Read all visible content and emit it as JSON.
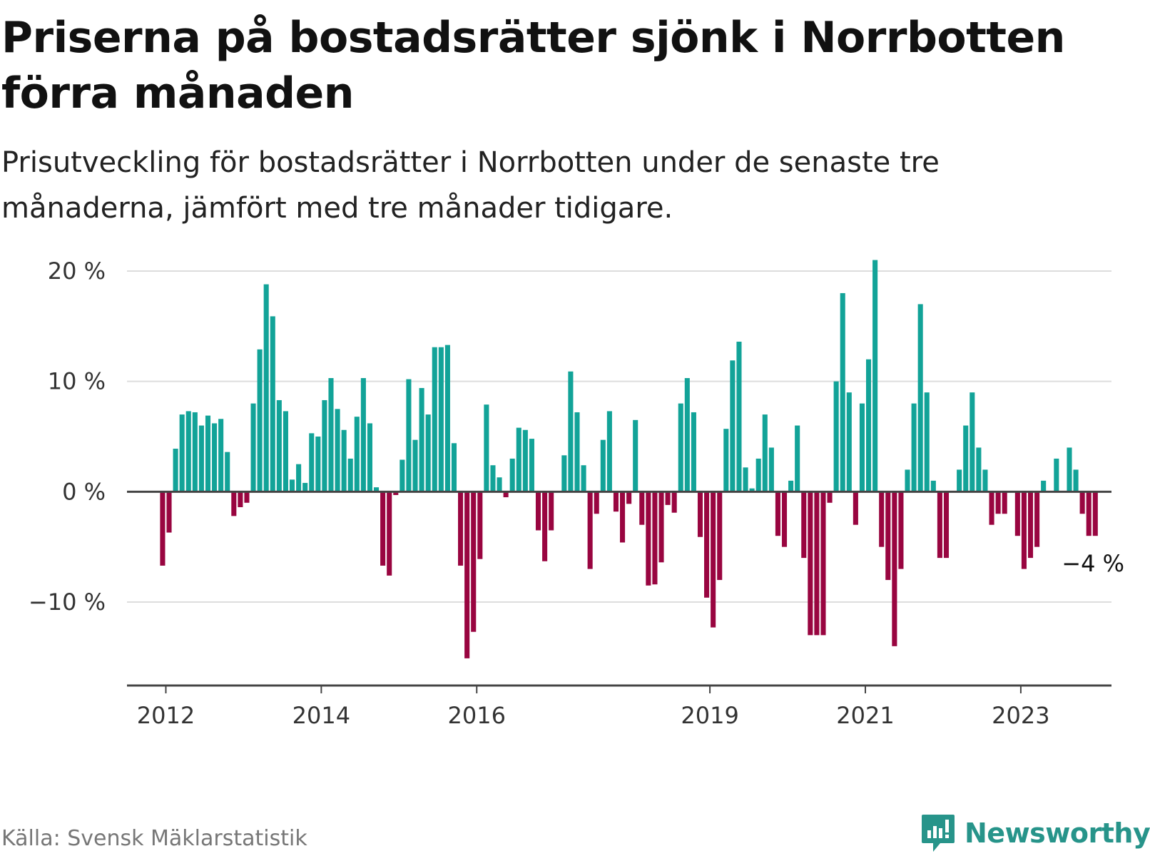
{
  "header": {
    "title": "Priserna på bostadsrätter sjönk i Norrbotten förra månaden",
    "subtitle": "Prisutveckling för bostadsrätter i Norrbotten under de senaste tre månaderna, jämfört med tre månader tidigare."
  },
  "footer": {
    "source": "Källa: Svensk Mäklarstatistik",
    "brand": "Newsworthy",
    "brand_icon": "newsworthy-logo-icon"
  },
  "colors": {
    "positive": "#12a398",
    "negative": "#990540",
    "gridline": "#dddddd",
    "zeroline": "#444444"
  },
  "chart_data": {
    "type": "bar",
    "title": "Priserna på bostadsrätter sjönk i Norrbotten förra månaden",
    "ylabel": "",
    "xlabel": "",
    "unit": "%",
    "ylim": [
      -17.5,
      20
    ],
    "yticks": [
      {
        "value": 20,
        "label": "20 %"
      },
      {
        "value": 10,
        "label": "10 %"
      },
      {
        "value": 0,
        "label": "0 %"
      },
      {
        "value": -10,
        "label": "−10 %"
      }
    ],
    "x_start": "2011-07",
    "x_end": "2024-02",
    "xticks": [
      {
        "month": "2012-01",
        "label": "2012"
      },
      {
        "month": "2014-01",
        "label": "2014"
      },
      {
        "month": "2016-01",
        "label": "2016"
      },
      {
        "month": "2019-01",
        "label": "2019"
      },
      {
        "month": "2021-01",
        "label": "2021"
      },
      {
        "month": "2023-01",
        "label": "2023"
      }
    ],
    "series": [
      {
        "name": "Prisutveckling",
        "values": [
          {
            "month": "2011-12",
            "value": -6.7
          },
          {
            "month": "2012-01",
            "value": -3.7
          },
          {
            "month": "2012-02",
            "value": 3.9
          },
          {
            "month": "2012-03",
            "value": 7.0
          },
          {
            "month": "2012-04",
            "value": 7.3
          },
          {
            "month": "2012-05",
            "value": 7.2
          },
          {
            "month": "2012-06",
            "value": 6.0
          },
          {
            "month": "2012-07",
            "value": 6.9
          },
          {
            "month": "2012-08",
            "value": 6.2
          },
          {
            "month": "2012-09",
            "value": 6.6
          },
          {
            "month": "2012-10",
            "value": 3.6
          },
          {
            "month": "2012-11",
            "value": -2.2
          },
          {
            "month": "2012-12",
            "value": -1.4
          },
          {
            "month": "2013-01",
            "value": -1.0
          },
          {
            "month": "2013-02",
            "value": 8.0
          },
          {
            "month": "2013-03",
            "value": 12.9
          },
          {
            "month": "2013-04",
            "value": 18.8
          },
          {
            "month": "2013-05",
            "value": 15.9
          },
          {
            "month": "2013-06",
            "value": 8.3
          },
          {
            "month": "2013-07",
            "value": 7.3
          },
          {
            "month": "2013-08",
            "value": 1.1
          },
          {
            "month": "2013-09",
            "value": 2.5
          },
          {
            "month": "2013-10",
            "value": 0.8
          },
          {
            "month": "2013-11",
            "value": 5.3
          },
          {
            "month": "2013-12",
            "value": 5.0
          },
          {
            "month": "2014-01",
            "value": 8.3
          },
          {
            "month": "2014-02",
            "value": 10.3
          },
          {
            "month": "2014-03",
            "value": 7.5
          },
          {
            "month": "2014-04",
            "value": 5.6
          },
          {
            "month": "2014-05",
            "value": 3.0
          },
          {
            "month": "2014-06",
            "value": 6.8
          },
          {
            "month": "2014-07",
            "value": 10.3
          },
          {
            "month": "2014-08",
            "value": 6.2
          },
          {
            "month": "2014-09",
            "value": 0.4
          },
          {
            "month": "2014-10",
            "value": -6.7
          },
          {
            "month": "2014-11",
            "value": -7.6
          },
          {
            "month": "2014-12",
            "value": -0.3
          },
          {
            "month": "2015-01",
            "value": 2.9
          },
          {
            "month": "2015-02",
            "value": 10.2
          },
          {
            "month": "2015-03",
            "value": 4.7
          },
          {
            "month": "2015-04",
            "value": 9.4
          },
          {
            "month": "2015-05",
            "value": 7.0
          },
          {
            "month": "2015-06",
            "value": 13.1
          },
          {
            "month": "2015-07",
            "value": 13.1
          },
          {
            "month": "2015-08",
            "value": 13.3
          },
          {
            "month": "2015-09",
            "value": 4.4
          },
          {
            "month": "2015-10",
            "value": -6.7
          },
          {
            "month": "2015-11",
            "value": -15.1
          },
          {
            "month": "2015-12",
            "value": -12.7
          },
          {
            "month": "2016-01",
            "value": -6.1
          },
          {
            "month": "2016-02",
            "value": 7.9
          },
          {
            "month": "2016-03",
            "value": 2.4
          },
          {
            "month": "2016-04",
            "value": 1.3
          },
          {
            "month": "2016-05",
            "value": -0.5
          },
          {
            "month": "2016-06",
            "value": 3.0
          },
          {
            "month": "2016-07",
            "value": 5.8
          },
          {
            "month": "2016-08",
            "value": 5.6
          },
          {
            "month": "2016-09",
            "value": 4.8
          },
          {
            "month": "2016-10",
            "value": -3.5
          },
          {
            "month": "2016-11",
            "value": -6.3
          },
          {
            "month": "2016-12",
            "value": -3.5
          },
          {
            "month": "2017-02",
            "value": 3.3
          },
          {
            "month": "2017-03",
            "value": 10.9
          },
          {
            "month": "2017-04",
            "value": 7.2
          },
          {
            "month": "2017-05",
            "value": 2.4
          },
          {
            "month": "2017-06",
            "value": -7.0
          },
          {
            "month": "2017-07",
            "value": -2.0
          },
          {
            "month": "2017-08",
            "value": 4.7
          },
          {
            "month": "2017-09",
            "value": 7.3
          },
          {
            "month": "2017-10",
            "value": -1.8
          },
          {
            "month": "2017-11",
            "value": -4.6
          },
          {
            "month": "2017-12",
            "value": -1.1
          },
          {
            "month": "2018-01",
            "value": 6.5
          },
          {
            "month": "2018-02",
            "value": -3.0
          },
          {
            "month": "2018-03",
            "value": -8.5
          },
          {
            "month": "2018-04",
            "value": -8.4
          },
          {
            "month": "2018-05",
            "value": -6.4
          },
          {
            "month": "2018-06",
            "value": -1.2
          },
          {
            "month": "2018-07",
            "value": -1.9
          },
          {
            "month": "2018-08",
            "value": 8.0
          },
          {
            "month": "2018-09",
            "value": 10.3
          },
          {
            "month": "2018-10",
            "value": 7.2
          },
          {
            "month": "2018-11",
            "value": -4.1
          },
          {
            "month": "2018-12",
            "value": -9.6
          },
          {
            "month": "2019-01",
            "value": -12.3
          },
          {
            "month": "2019-02",
            "value": -8.0
          },
          {
            "month": "2019-03",
            "value": 5.7
          },
          {
            "month": "2019-04",
            "value": 11.9
          },
          {
            "month": "2019-05",
            "value": 13.6
          },
          {
            "month": "2019-06",
            "value": 2.2
          },
          {
            "month": "2019-07",
            "value": 0.3
          },
          {
            "month": "2019-08",
            "value": 3.0
          },
          {
            "month": "2019-09",
            "value": 7.0
          },
          {
            "month": "2019-10",
            "value": 4.0
          },
          {
            "month": "2019-11",
            "value": -4.0
          },
          {
            "month": "2019-12",
            "value": -5.0
          },
          {
            "month": "2020-01",
            "value": 1.0
          },
          {
            "month": "2020-02",
            "value": 6.0
          },
          {
            "month": "2020-03",
            "value": -6.0
          },
          {
            "month": "2020-04",
            "value": -13.0
          },
          {
            "month": "2020-05",
            "value": -13.0
          },
          {
            "month": "2020-06",
            "value": -13.0
          },
          {
            "month": "2020-07",
            "value": -1.0
          },
          {
            "month": "2020-08",
            "value": 10.0
          },
          {
            "month": "2020-09",
            "value": 18.0
          },
          {
            "month": "2020-10",
            "value": 9.0
          },
          {
            "month": "2020-11",
            "value": -3.0
          },
          {
            "month": "2020-12",
            "value": 8.0
          },
          {
            "month": "2021-01",
            "value": 12.0
          },
          {
            "month": "2021-02",
            "value": 21.0
          },
          {
            "month": "2021-03",
            "value": -5.0
          },
          {
            "month": "2021-04",
            "value": -8.0
          },
          {
            "month": "2021-05",
            "value": -14.0
          },
          {
            "month": "2021-06",
            "value": -7.0
          },
          {
            "month": "2021-07",
            "value": 2.0
          },
          {
            "month": "2021-08",
            "value": 8.0
          },
          {
            "month": "2021-09",
            "value": 17.0
          },
          {
            "month": "2021-10",
            "value": 9.0
          },
          {
            "month": "2021-11",
            "value": 1.0
          },
          {
            "month": "2021-12",
            "value": -6.0
          },
          {
            "month": "2022-01",
            "value": -6.0
          },
          {
            "month": "2022-03",
            "value": 2.0
          },
          {
            "month": "2022-04",
            "value": 6.0
          },
          {
            "month": "2022-05",
            "value": 9.0
          },
          {
            "month": "2022-06",
            "value": 4.0
          },
          {
            "month": "2022-07",
            "value": 2.0
          },
          {
            "month": "2022-08",
            "value": -3.0
          },
          {
            "month": "2022-09",
            "value": -2.0
          },
          {
            "month": "2022-10",
            "value": -2.0
          },
          {
            "month": "2022-12",
            "value": -4.0
          },
          {
            "month": "2023-01",
            "value": -7.0
          },
          {
            "month": "2023-02",
            "value": -6.0
          },
          {
            "month": "2023-03",
            "value": -5.0
          },
          {
            "month": "2023-04",
            "value": 1.0
          },
          {
            "month": "2023-06",
            "value": 3.0
          },
          {
            "month": "2023-08",
            "value": 4.0
          },
          {
            "month": "2023-09",
            "value": 2.0
          },
          {
            "month": "2023-10",
            "value": -2.0
          },
          {
            "month": "2023-11",
            "value": -4.0
          },
          {
            "month": "2023-12",
            "value": -4.0
          }
        ]
      }
    ],
    "annotations": [
      {
        "month": "2023-12",
        "value": -4.0,
        "label": "−4 %"
      }
    ]
  }
}
